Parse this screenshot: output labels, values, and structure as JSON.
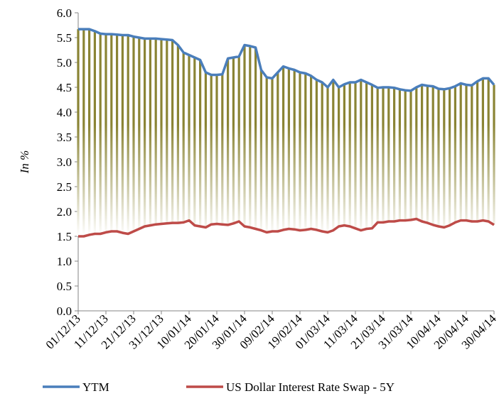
{
  "chart_data": {
    "type": "line",
    "y_label": "In %",
    "categories": [
      "01/12/13",
      null,
      null,
      null,
      null,
      "11/12/13",
      null,
      null,
      null,
      null,
      "21/12/13",
      null,
      null,
      null,
      null,
      "31/12/13",
      null,
      null,
      null,
      null,
      "10/01/14",
      null,
      null,
      null,
      null,
      "20/01/14",
      null,
      null,
      null,
      null,
      "30/01/14",
      null,
      null,
      null,
      null,
      "09/02/14",
      null,
      null,
      null,
      null,
      "19/02/14",
      null,
      null,
      null,
      null,
      "01/03/14",
      null,
      null,
      null,
      null,
      "11/03/14",
      null,
      null,
      null,
      null,
      "21/03/14",
      null,
      null,
      null,
      null,
      "31/03/14",
      null,
      null,
      null,
      null,
      "10/04/14",
      null,
      null,
      null,
      null,
      "20/04/14",
      null,
      null,
      null,
      null,
      "30/04/14"
    ],
    "series": [
      {
        "name": "YTM",
        "color": "#4a7ebb",
        "values": [
          5.67,
          5.67,
          5.67,
          5.63,
          5.58,
          5.57,
          5.57,
          5.56,
          5.55,
          5.55,
          5.52,
          5.5,
          5.48,
          5.48,
          5.48,
          5.47,
          5.46,
          5.45,
          5.35,
          5.2,
          5.15,
          5.1,
          5.05,
          4.8,
          4.75,
          4.75,
          4.76,
          5.08,
          5.1,
          5.12,
          5.35,
          5.33,
          5.3,
          4.85,
          4.7,
          4.68,
          4.8,
          4.92,
          4.88,
          4.85,
          4.8,
          4.78,
          4.73,
          4.65,
          4.6,
          4.5,
          4.65,
          4.5,
          4.56,
          4.6,
          4.6,
          4.65,
          4.6,
          4.55,
          4.49,
          4.5,
          4.5,
          4.49,
          4.46,
          4.44,
          4.43,
          4.5,
          4.55,
          4.53,
          4.52,
          4.47,
          4.46,
          4.48,
          4.52,
          4.58,
          4.55,
          4.54,
          4.62,
          4.68,
          4.68,
          4.55
        ]
      },
      {
        "name": "US Dollar Interest Rate Swap - 5Y",
        "color": "#be4b48",
        "values": [
          1.5,
          1.5,
          1.53,
          1.55,
          1.55,
          1.58,
          1.6,
          1.6,
          1.57,
          1.55,
          1.6,
          1.65,
          1.7,
          1.72,
          1.74,
          1.75,
          1.76,
          1.77,
          1.77,
          1.78,
          1.82,
          1.72,
          1.7,
          1.68,
          1.74,
          1.75,
          1.74,
          1.73,
          1.76,
          1.8,
          1.7,
          1.68,
          1.65,
          1.62,
          1.58,
          1.6,
          1.6,
          1.63,
          1.65,
          1.64,
          1.62,
          1.63,
          1.65,
          1.63,
          1.6,
          1.58,
          1.62,
          1.7,
          1.72,
          1.7,
          1.66,
          1.62,
          1.65,
          1.66,
          1.78,
          1.78,
          1.8,
          1.8,
          1.82,
          1.82,
          1.83,
          1.85,
          1.8,
          1.77,
          1.73,
          1.7,
          1.68,
          1.72,
          1.78,
          1.82,
          1.82,
          1.8,
          1.8,
          1.82,
          1.8,
          1.73
        ]
      }
    ],
    "drop_line_color": "#8a8434",
    "ylim": [
      0,
      6
    ],
    "yticks": [
      {
        "value": 0,
        "label": "0.0"
      },
      0.5,
      {
        "value": 1,
        "label": "1.0"
      },
      1.5,
      {
        "value": 2,
        "label": "2.0"
      },
      2.5,
      {
        "value": 3,
        "label": "3.0"
      },
      3.5,
      {
        "value": 4,
        "label": "4.0"
      },
      4.5,
      {
        "value": 5,
        "label": "5.0"
      },
      5.5,
      {
        "value": 6,
        "label": "6.0"
      }
    ],
    "legend": "bottom"
  }
}
